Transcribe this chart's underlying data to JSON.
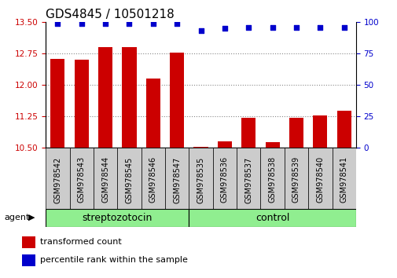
{
  "title": "GDS4845 / 10501218",
  "samples": [
    "GSM978542",
    "GSM978543",
    "GSM978544",
    "GSM978545",
    "GSM978546",
    "GSM978547",
    "GSM978535",
    "GSM978536",
    "GSM978537",
    "GSM978538",
    "GSM978539",
    "GSM978540",
    "GSM978541"
  ],
  "transformed_count": [
    12.62,
    12.61,
    12.9,
    12.91,
    12.15,
    12.78,
    10.52,
    10.65,
    11.2,
    10.63,
    11.2,
    11.27,
    11.38
  ],
  "percentile_rank": [
    99,
    99,
    99,
    99,
    99,
    99,
    93,
    95,
    96,
    96,
    96,
    96,
    96
  ],
  "groups": [
    {
      "label": "streptozotocin",
      "samples_count": 6,
      "color": "#90ee90"
    },
    {
      "label": "control",
      "samples_count": 7,
      "color": "#90ee90"
    }
  ],
  "ylim_left": [
    10.5,
    13.5
  ],
  "ylim_right": [
    0,
    100
  ],
  "yticks_left": [
    10.5,
    11.25,
    12.0,
    12.75,
    13.5
  ],
  "yticks_right": [
    0,
    25,
    50,
    75,
    100
  ],
  "bar_color": "#cc0000",
  "dot_color": "#0000cc",
  "bar_width": 0.6,
  "grid_color": "#888888",
  "bg_color": "#ffffff",
  "tick_label_color_left": "#cc0000",
  "tick_label_color_right": "#0000cc",
  "legend_bar_label": "transformed count",
  "legend_dot_label": "percentile rank within the sample",
  "agent_label": "agent",
  "title_fontsize": 11,
  "axis_fontsize": 7.5,
  "legend_fontsize": 8,
  "group_fontsize": 9,
  "sample_label_fontsize": 7,
  "cell_bg": "#cccccc"
}
